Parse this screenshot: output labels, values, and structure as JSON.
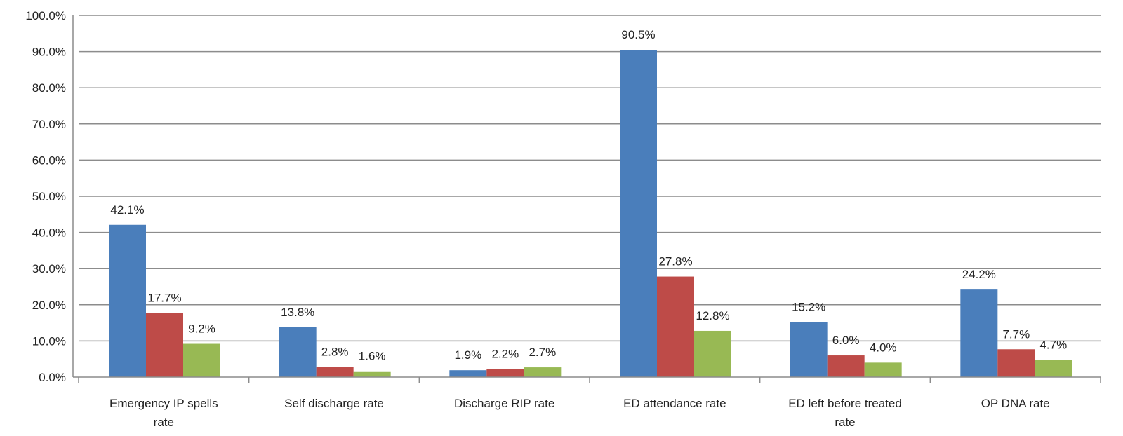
{
  "chart_data": {
    "type": "bar",
    "categories": [
      [
        "Emergency IP spells",
        "rate"
      ],
      [
        "Self discharge rate"
      ],
      [
        "Discharge RIP rate"
      ],
      [
        "ED attendance rate"
      ],
      [
        "ED left before treated",
        "rate"
      ],
      [
        "OP DNA rate"
      ]
    ],
    "series": [
      {
        "values": [
          42.1,
          13.8,
          1.9,
          90.5,
          15.2,
          24.2
        ],
        "labels": [
          "42.1%",
          "13.8%",
          "1.9%",
          "90.5%",
          "15.2%",
          "24.2%"
        ],
        "color": "#4a7ebb"
      },
      {
        "values": [
          17.7,
          2.8,
          2.2,
          27.8,
          6.0,
          7.7
        ],
        "labels": [
          "17.7%",
          "2.8%",
          "2.2%",
          "27.8%",
          "6.0%",
          "7.7%"
        ],
        "color": "#be4b48"
      },
      {
        "values": [
          9.2,
          1.6,
          2.7,
          12.8,
          4.0,
          4.7
        ],
        "labels": [
          "9.2%",
          "1.6%",
          "2.7%",
          "12.8%",
          "4.0%",
          "4.7%"
        ],
        "color": "#98b954"
      }
    ],
    "ylim": [
      0,
      100
    ],
    "yticks": [
      "0.0%",
      "10.0%",
      "20.0%",
      "30.0%",
      "40.0%",
      "50.0%",
      "60.0%",
      "70.0%",
      "80.0%",
      "90.0%",
      "100.0%"
    ],
    "grid": true,
    "legend": "none"
  }
}
